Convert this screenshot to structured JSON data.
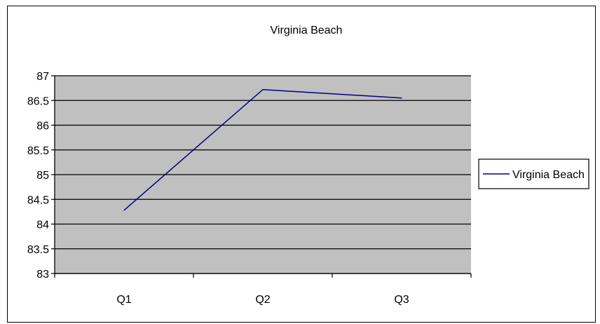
{
  "chart_data": {
    "type": "line",
    "title": "Virginia Beach",
    "xlabel": "",
    "ylabel": "",
    "categories": [
      "Q1",
      "Q2",
      "Q3"
    ],
    "series": [
      {
        "name": "Virginia Beach",
        "values": [
          84.28,
          86.72,
          86.55
        ]
      }
    ],
    "ylim": [
      83,
      87
    ],
    "yticks": [
      "83",
      "83.5",
      "84",
      "84.5",
      "85",
      "85.5",
      "86",
      "86.5",
      "87"
    ],
    "grid": true,
    "legend_position": "right",
    "colors": {
      "plot_background": "#c0c0c0",
      "series_line": "#000080",
      "gridline": "#000000"
    }
  }
}
